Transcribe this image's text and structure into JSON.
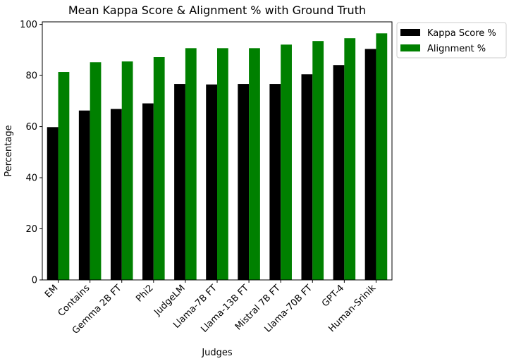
{
  "chart_data": {
    "type": "bar",
    "title": "Mean Kappa Score & Alignment % with Ground Truth",
    "xlabel": "Judges",
    "ylabel": "Percentage",
    "ylim": [
      0,
      101
    ],
    "yticks": [
      0,
      20,
      40,
      60,
      80,
      100
    ],
    "grid": false,
    "legend_position": "outside-top-right",
    "categories": [
      "EM",
      "Contains",
      "Gemma 2B FT",
      "Phi2",
      "JudgeLM",
      "Llama-7B FT",
      "Llama-13B FT",
      "Mistral 7B FT",
      "Llama-70B FT",
      "GPT-4",
      "Human-Srinik"
    ],
    "series": [
      {
        "name": "Kappa Score %",
        "color": "#000000",
        "values": [
          59.8,
          66.3,
          66.9,
          69.1,
          76.7,
          76.5,
          76.7,
          76.7,
          80.5,
          84.1,
          90.4
        ]
      },
      {
        "name": "Alignment %",
        "color": "#008000",
        "values": [
          81.4,
          85.2,
          85.5,
          87.2,
          90.7,
          90.7,
          90.7,
          92.1,
          93.5,
          94.6,
          96.5
        ]
      }
    ]
  }
}
